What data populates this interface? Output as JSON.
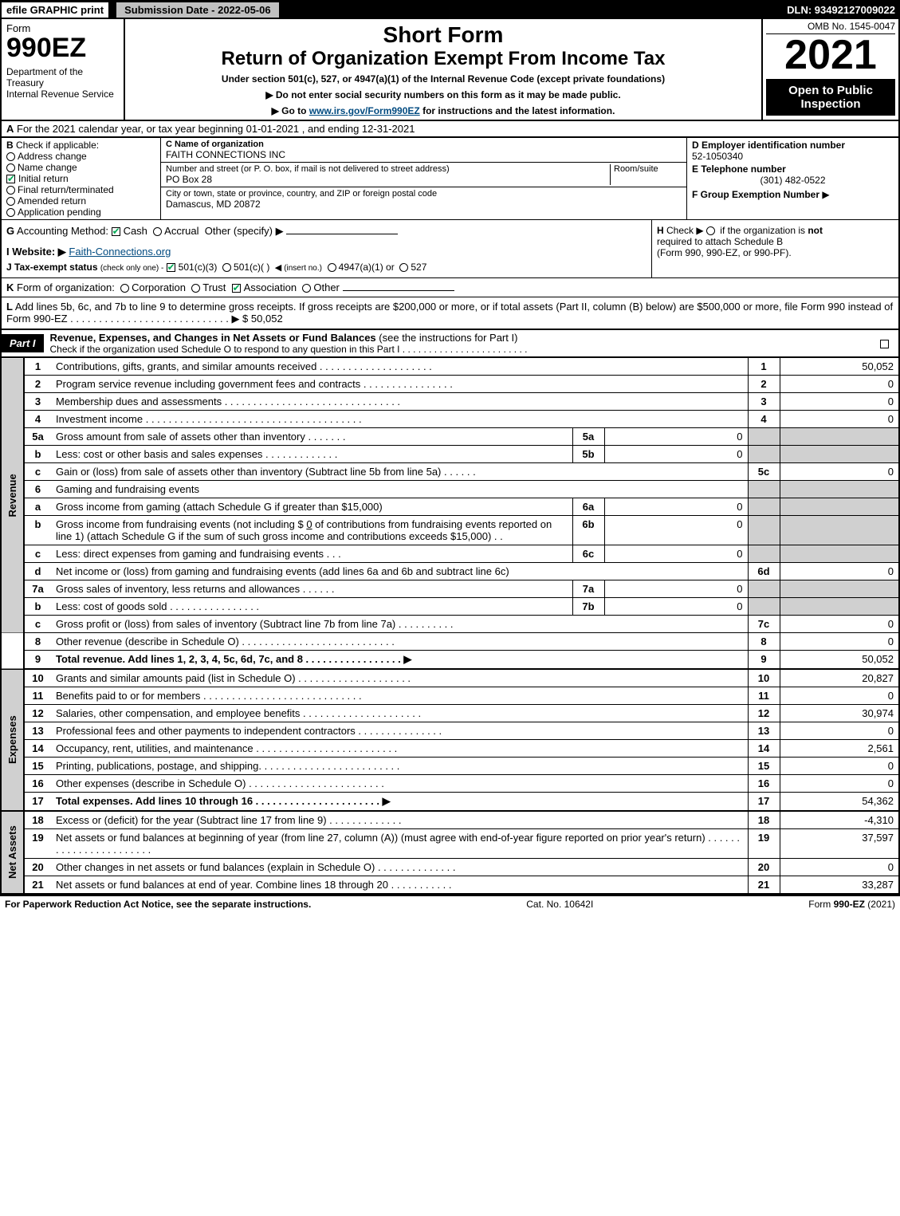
{
  "top": {
    "efile": "efile GRAPHIC print",
    "submission": "Submission Date - 2022-05-06",
    "dln": "DLN: 93492127009022"
  },
  "header": {
    "form_word": "Form",
    "form_num": "990EZ",
    "dept": "Department of the Treasury\nInternal Revenue Service",
    "short": "Short Form",
    "return_title": "Return of Organization Exempt From Income Tax",
    "under": "Under section 501(c), 527, or 4947(a)(1) of the Internal Revenue Code (except private foundations)",
    "warn": "▶ Do not enter social security numbers on this form as it may be made public.",
    "goto_pre": "▶ Go to ",
    "goto_link": "www.irs.gov/Form990EZ",
    "goto_post": " for instructions and the latest information.",
    "omb": "OMB No. 1545-0047",
    "year": "2021",
    "open": "Open to Public Inspection"
  },
  "row_a": {
    "lead": "A",
    "text": "For the 2021 calendar year, or tax year beginning 01-01-2021 , and ending 12-31-2021"
  },
  "col_b": {
    "lead": "B",
    "title": "Check if applicable:",
    "items": [
      {
        "label": "Address change",
        "checked": false,
        "shape": "circle"
      },
      {
        "label": "Name change",
        "checked": false,
        "shape": "circle"
      },
      {
        "label": "Initial return",
        "checked": true,
        "shape": "square"
      },
      {
        "label": "Final return/terminated",
        "checked": false,
        "shape": "circle"
      },
      {
        "label": "Amended return",
        "checked": false,
        "shape": "circle"
      },
      {
        "label": "Application pending",
        "checked": false,
        "shape": "circle"
      }
    ]
  },
  "col_c": {
    "name_label": "C Name of organization",
    "name": "FAITH CONNECTIONS INC",
    "street_label": "Number and street (or P. O. box, if mail is not delivered to street address)",
    "room_label": "Room/suite",
    "street": "PO Box 28",
    "city_label": "City or town, state or province, country, and ZIP or foreign postal code",
    "city": "Damascus, MD  20872"
  },
  "col_def": {
    "d_label": "D Employer identification number",
    "d_val": "52-1050340",
    "e_label": "E Telephone number",
    "e_val": "(301) 482-0522",
    "f_label": "F Group Exemption Number",
    "f_arrow": "▶"
  },
  "row_g": {
    "lead": "G",
    "label": "Accounting Method:",
    "cash": "Cash",
    "accrual": "Accrual",
    "other": "Other (specify) ▶"
  },
  "row_h": {
    "lead": "H",
    "text_pre": "Check ▶",
    "text_mid": "if the organization is ",
    "not": "not",
    "text2": "required to attach Schedule B",
    "text3": "(Form 990, 990-EZ, or 990-PF)."
  },
  "row_i": {
    "lead": "I Website: ▶",
    "link": "Faith-Connections.org"
  },
  "row_j": {
    "lead": "J Tax-exempt status",
    "sub": "(check only one) -",
    "o1": "501(c)(3)",
    "o2": "501(c)(  )",
    "insert": "(insert no.)",
    "o3": "4947(a)(1) or",
    "o4": "527"
  },
  "row_k": {
    "lead": "K",
    "label": "Form of organization:",
    "corp": "Corporation",
    "trust": "Trust",
    "assoc": "Association",
    "other": "Other"
  },
  "row_l": {
    "lead": "L",
    "text": "Add lines 5b, 6c, and 7b to line 9 to determine gross receipts. If gross receipts are $200,000 or more, or if total assets (Part II, column (B) below) are $500,000 or more, file Form 990 instead of Form 990-EZ  .  .  .  .  .  .  .  .  .  .  .  .  .  .  .  .  .  .  .  .  .  .  .  .  .  .  .  .  ▶ $ ",
    "amount": "50,052"
  },
  "part1": {
    "tag": "Part I",
    "title": "Revenue, Expenses, and Changes in Net Assets or Fund Balances",
    "see": "(see the instructions for Part I)",
    "check": "Check if the organization used Schedule O to respond to any question in this Part I  .  .  .  .  .  .  .  .  .  .  .  .  .  .  .  .  .  .  .  .  .  .  .  .",
    "check_val": false
  },
  "vtabs": {
    "revenue": "Revenue",
    "expenses": "Expenses",
    "netassets": "Net Assets"
  },
  "lines": {
    "l1": {
      "n": "1",
      "d": "Contributions, gifts, grants, and similar amounts received  .  .  .  .  .  .  .  .  .  .  .  .  .  .  .  .  .  .  .  .",
      "ref": "1",
      "amt": "50,052"
    },
    "l2": {
      "n": "2",
      "d": "Program service revenue including government fees and contracts  .  .  .  .  .  .  .  .  .  .  .  .  .  .  .  .",
      "ref": "2",
      "amt": "0"
    },
    "l3": {
      "n": "3",
      "d": "Membership dues and assessments  .  .  .  .  .  .  .  .  .  .  .  .  .  .  .  .  .  .  .  .  .  .  .  .  .  .  .  .  .  .  .",
      "ref": "3",
      "amt": "0"
    },
    "l4": {
      "n": "4",
      "d": "Investment income  .  .  .  .  .  .  .  .  .  .  .  .  .  .  .  .  .  .  .  .  .  .  .  .  .  .  .  .  .  .  .  .  .  .  .  .  .  .",
      "ref": "4",
      "amt": "0"
    },
    "l5a": {
      "n": "5a",
      "d": "Gross amount from sale of assets other than inventory  .  .  .  .  .  .  .",
      "sub": "5a",
      "subval": "0"
    },
    "l5b": {
      "n": "b",
      "d": "Less: cost or other basis and sales expenses  .  .  .  .  .  .  .  .  .  .  .  .  .",
      "sub": "5b",
      "subval": "0"
    },
    "l5c": {
      "n": "c",
      "d": "Gain or (loss) from sale of assets other than inventory (Subtract line 5b from line 5a)  .  .  .  .  .  .",
      "ref": "5c",
      "amt": "0"
    },
    "l6": {
      "n": "6",
      "d": "Gaming and fundraising events"
    },
    "l6a": {
      "n": "a",
      "d": "Gross income from gaming (attach Schedule G if greater than $15,000)",
      "sub": "6a",
      "subval": "0"
    },
    "l6b": {
      "n": "b",
      "d1": "Gross income from fundraising events (not including $ ",
      "dund": "0",
      "d2": "       of contributions from fundraising events reported on line 1) (attach Schedule G if the sum of such gross income and contributions exceeds $15,000)     .  .",
      "sub": "6b",
      "subval": "0"
    },
    "l6c": {
      "n": "c",
      "d": "Less: direct expenses from gaming and fundraising events       .  .  .",
      "sub": "6c",
      "subval": "0"
    },
    "l6d": {
      "n": "d",
      "d": "Net income or (loss) from gaming and fundraising events (add lines 6a and 6b and subtract line 6c)",
      "ref": "6d",
      "amt": "0"
    },
    "l7a": {
      "n": "7a",
      "d": "Gross sales of inventory, less returns and allowances  .  .  .  .  .  .",
      "sub": "7a",
      "subval": "0"
    },
    "l7b": {
      "n": "b",
      "d": "Less: cost of goods sold        .  .  .  .  .  .  .  .  .  .  .  .  .  .  .  .",
      "sub": "7b",
      "subval": "0"
    },
    "l7c": {
      "n": "c",
      "d": "Gross profit or (loss) from sales of inventory (Subtract line 7b from line 7a)  .  .  .  .  .  .  .  .  .  .",
      "ref": "7c",
      "amt": "0"
    },
    "l8": {
      "n": "8",
      "d": "Other revenue (describe in Schedule O)  .  .  .  .  .  .  .  .  .  .  .  .  .  .  .  .  .  .  .  .  .  .  .  .  .  .  .",
      "ref": "8",
      "amt": "0"
    },
    "l9": {
      "n": "9",
      "d": "Total revenue. Add lines 1, 2, 3, 4, 5c, 6d, 7c, and 8   .  .  .  .  .  .  .  .  .  .  .  .  .  .  .  .  .  ▶",
      "ref": "9",
      "amt": "50,052",
      "bold": true
    },
    "l10": {
      "n": "10",
      "d": "Grants and similar amounts paid (list in Schedule O)  .  .  .  .  .  .  .  .  .  .  .  .  .  .  .  .  .  .  .  .",
      "ref": "10",
      "amt": "20,827"
    },
    "l11": {
      "n": "11",
      "d": "Benefits paid to or for members     .  .  .  .  .  .  .  .  .  .  .  .  .  .  .  .  .  .  .  .  .  .  .  .  .  .  .  .",
      "ref": "11",
      "amt": "0"
    },
    "l12": {
      "n": "12",
      "d": "Salaries, other compensation, and employee benefits .  .  .  .  .  .  .  .  .  .  .  .  .  .  .  .  .  .  .  .  .",
      "ref": "12",
      "amt": "30,974"
    },
    "l13": {
      "n": "13",
      "d": "Professional fees and other payments to independent contractors  .  .  .  .  .  .  .  .  .  .  .  .  .  .  .",
      "ref": "13",
      "amt": "0"
    },
    "l14": {
      "n": "14",
      "d": "Occupancy, rent, utilities, and maintenance .  .  .  .  .  .  .  .  .  .  .  .  .  .  .  .  .  .  .  .  .  .  .  .  .",
      "ref": "14",
      "amt": "2,561"
    },
    "l15": {
      "n": "15",
      "d": "Printing, publications, postage, and shipping.  .  .  .  .  .  .  .  .  .  .  .  .  .  .  .  .  .  .  .  .  .  .  .  .",
      "ref": "15",
      "amt": "0"
    },
    "l16": {
      "n": "16",
      "d": "Other expenses (describe in Schedule O)     .  .  .  .  .  .  .  .  .  .  .  .  .  .  .  .  .  .  .  .  .  .  .  .",
      "ref": "16",
      "amt": "0"
    },
    "l17": {
      "n": "17",
      "d": "Total expenses. Add lines 10 through 16     .  .  .  .  .  .  .  .  .  .  .  .  .  .  .  .  .  .  .  .  .  .  ▶",
      "ref": "17",
      "amt": "54,362",
      "bold": true
    },
    "l18": {
      "n": "18",
      "d": "Excess or (deficit) for the year (Subtract line 17 from line 9)        .  .  .  .  .  .  .  .  .  .  .  .  .",
      "ref": "18",
      "amt": "-4,310"
    },
    "l19": {
      "n": "19",
      "d": "Net assets or fund balances at beginning of year (from line 27, column (A)) (must agree with end-of-year figure reported on prior year's return) .  .  .  .  .  .  .  .  .  .  .  .  .  .  .  .  .  .  .  .  .  .  .",
      "ref": "19",
      "amt": "37,597"
    },
    "l20": {
      "n": "20",
      "d": "Other changes in net assets or fund balances (explain in Schedule O) .  .  .  .  .  .  .  .  .  .  .  .  .  .",
      "ref": "20",
      "amt": "0"
    },
    "l21": {
      "n": "21",
      "d": "Net assets or fund balances at end of year. Combine lines 18 through 20 .  .  .  .  .  .  .  .  .  .  .",
      "ref": "21",
      "amt": "33,287"
    }
  },
  "footer": {
    "left": "For Paperwork Reduction Act Notice, see the separate instructions.",
    "mid": "Cat. No. 10642I",
    "right_pre": "Form ",
    "right_bold": "990-EZ",
    "right_post": " (2021)"
  }
}
